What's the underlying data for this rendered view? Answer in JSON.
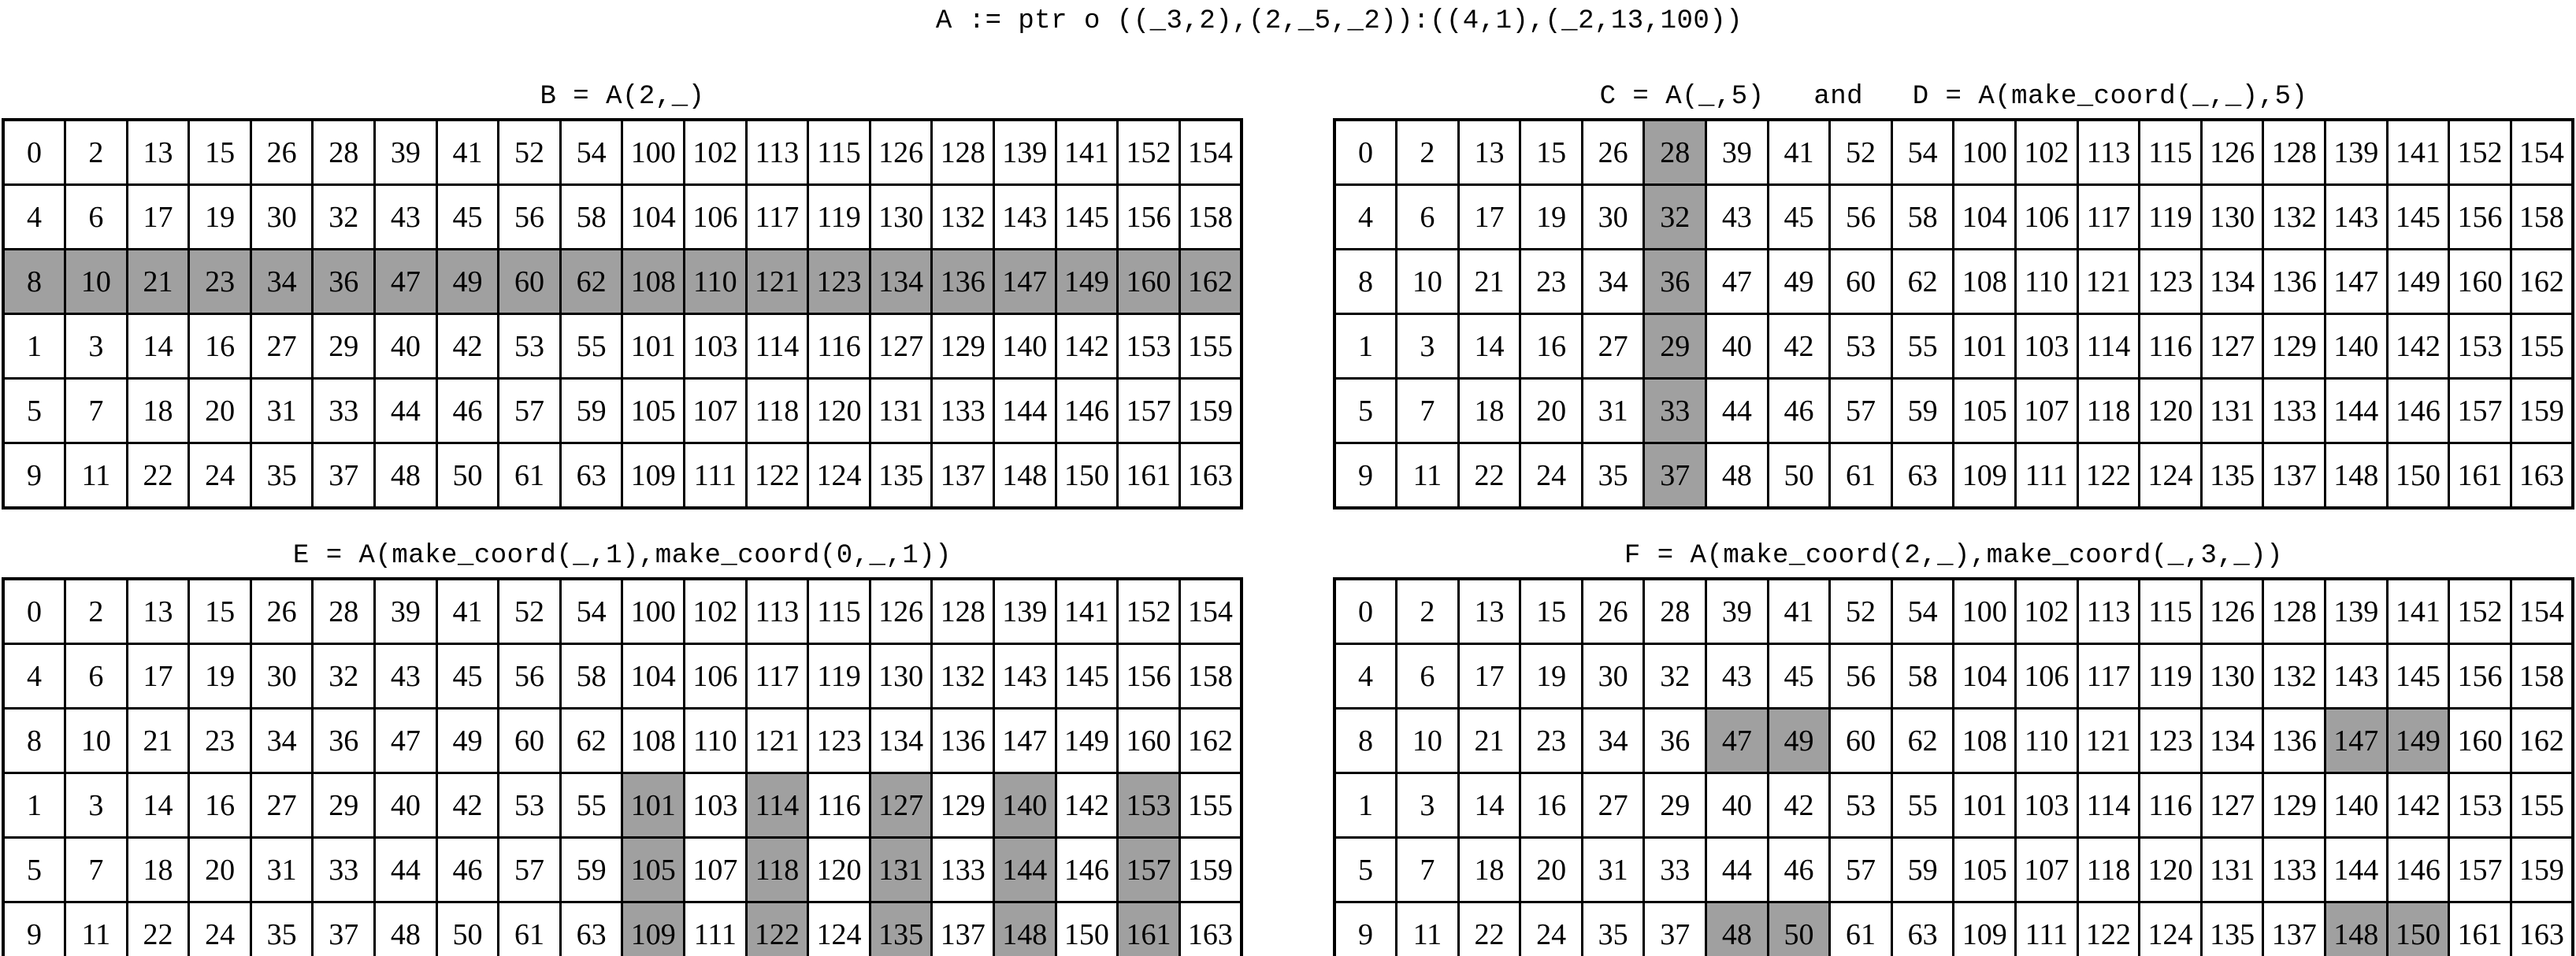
{
  "main_title": "A := ptr o ((_3,2),(2,_5,_2)):((4,1),(_2,13,100))",
  "colors": {
    "highlight": "#a0a0a0",
    "border": "#000000",
    "background": "#ffffff",
    "text": "#000000"
  },
  "grid": {
    "rows": 6,
    "cols": 20,
    "values": [
      [
        0,
        2,
        13,
        15,
        26,
        28,
        39,
        41,
        52,
        54,
        100,
        102,
        113,
        115,
        126,
        128,
        139,
        141,
        152,
        154
      ],
      [
        4,
        6,
        17,
        19,
        30,
        32,
        43,
        45,
        56,
        58,
        104,
        106,
        117,
        119,
        130,
        132,
        143,
        145,
        156,
        158
      ],
      [
        8,
        10,
        21,
        23,
        34,
        36,
        47,
        49,
        60,
        62,
        108,
        110,
        121,
        123,
        134,
        136,
        147,
        149,
        160,
        162
      ],
      [
        1,
        3,
        14,
        16,
        27,
        29,
        40,
        42,
        53,
        55,
        101,
        103,
        114,
        116,
        127,
        129,
        140,
        142,
        153,
        155
      ],
      [
        5,
        7,
        18,
        20,
        31,
        33,
        44,
        46,
        57,
        59,
        105,
        107,
        118,
        120,
        131,
        133,
        144,
        146,
        157,
        159
      ],
      [
        9,
        11,
        22,
        24,
        35,
        37,
        48,
        50,
        61,
        63,
        109,
        111,
        122,
        124,
        135,
        137,
        148,
        150,
        161,
        163
      ]
    ]
  },
  "tables": [
    {
      "id": "B",
      "title": "B = A(2,_)",
      "highlight": {
        "rows": [
          2
        ],
        "cols": [
          0,
          1,
          2,
          3,
          4,
          5,
          6,
          7,
          8,
          9,
          10,
          11,
          12,
          13,
          14,
          15,
          16,
          17,
          18,
          19
        ]
      },
      "highlighted_values": [
        8,
        10,
        21,
        23,
        34,
        36,
        47,
        49,
        60,
        62,
        108,
        110,
        121,
        123,
        134,
        136,
        147,
        149,
        160,
        162
      ]
    },
    {
      "id": "CD",
      "title": "C = A(_,5)   and   D = A(make_coord(_,_),5)",
      "highlight": {
        "rows": [
          0,
          1,
          2,
          3,
          4,
          5
        ],
        "cols": [
          5
        ]
      },
      "highlighted_values": [
        28,
        32,
        36,
        29,
        33,
        37
      ]
    },
    {
      "id": "E",
      "title": "E = A(make_coord(_,1),make_coord(0,_,1))",
      "highlight": {
        "rows": [
          3,
          4,
          5
        ],
        "cols": [
          10,
          12,
          14,
          16,
          18
        ]
      },
      "highlighted_values": [
        101,
        114,
        127,
        140,
        153,
        105,
        118,
        131,
        144,
        157,
        109,
        122,
        135,
        148,
        161
      ]
    },
    {
      "id": "F",
      "title": "F = A(make_coord(2,_),make_coord(_,3,_))",
      "highlight": {
        "rows": [
          2,
          5
        ],
        "cols": [
          6,
          7,
          16,
          17
        ]
      },
      "highlighted_values": [
        47,
        49,
        147,
        149,
        48,
        50,
        148,
        150
      ]
    }
  ]
}
